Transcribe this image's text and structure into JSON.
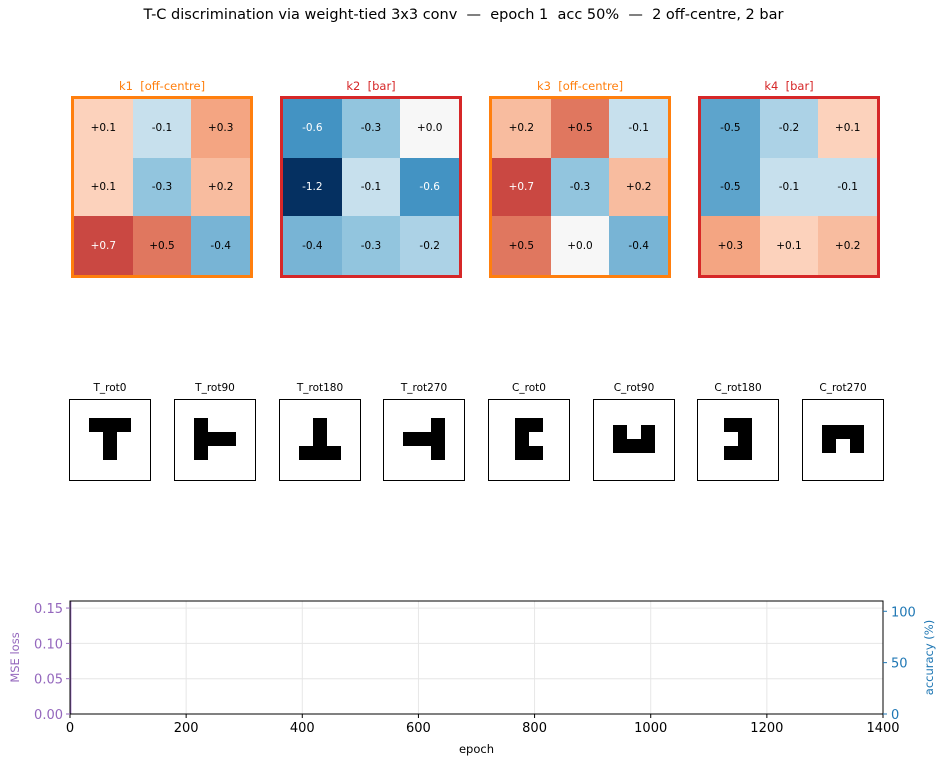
{
  "figure": {
    "title": "T-C discrimination via weight-tied 3x3 conv  —  epoch 1  acc 50%  —  2 off-centre, 2 bar"
  },
  "colors": {
    "off_centre": "#ff7f0e",
    "bar": "#d62728",
    "loss": "#9467bd",
    "accuracy": "#1f77b4",
    "colormap": "RdBu_r"
  },
  "kernels": [
    {
      "title": "k1  [off-centre]",
      "type": "off-centre",
      "values": [
        [
          0.1,
          -0.1,
          0.3
        ],
        [
          0.1,
          -0.3,
          0.2
        ],
        [
          0.7,
          0.5,
          -0.4
        ]
      ],
      "labels": [
        [
          "+0.1",
          "-0.1",
          "+0.3"
        ],
        [
          "+0.1",
          "-0.3",
          "+0.2"
        ],
        [
          "+0.7",
          "+0.5",
          "-0.4"
        ]
      ]
    },
    {
      "title": "k2  [bar]",
      "type": "bar",
      "values": [
        [
          -0.6,
          -0.3,
          0.0
        ],
        [
          -1.2,
          -0.1,
          -0.6
        ],
        [
          -0.4,
          -0.3,
          -0.2
        ]
      ],
      "labels": [
        [
          "-0.6",
          "-0.3",
          "+0.0"
        ],
        [
          "-1.2",
          "-0.1",
          "-0.6"
        ],
        [
          "-0.4",
          "-0.3",
          "-0.2"
        ]
      ]
    },
    {
      "title": "k3  [off-centre]",
      "type": "off-centre",
      "values": [
        [
          0.2,
          0.5,
          -0.1
        ],
        [
          0.7,
          -0.3,
          0.2
        ],
        [
          0.5,
          0.0,
          -0.4
        ]
      ],
      "labels": [
        [
          "+0.2",
          "+0.5",
          "-0.1"
        ],
        [
          "+0.7",
          "-0.3",
          "+0.2"
        ],
        [
          "+0.5",
          "+0.0",
          "-0.4"
        ]
      ]
    },
    {
      "title": "k4  [bar]",
      "type": "bar",
      "values": [
        [
          -0.5,
          -0.2,
          0.1
        ],
        [
          -0.5,
          -0.1,
          -0.1
        ],
        [
          0.3,
          0.1,
          0.2
        ]
      ],
      "labels": [
        [
          "-0.5",
          "-0.2",
          "+0.1"
        ],
        [
          "-0.5",
          "-0.1",
          "-0.1"
        ],
        [
          "+0.3",
          "+0.1",
          "+0.2"
        ]
      ]
    }
  ],
  "glyphs": [
    {
      "label": "T_rot0",
      "pixels": [
        [
          1,
          1,
          1
        ],
        [
          0,
          1,
          0
        ],
        [
          0,
          1,
          0
        ]
      ]
    },
    {
      "label": "T_rot90",
      "pixels": [
        [
          1,
          0,
          0
        ],
        [
          1,
          1,
          1
        ],
        [
          1,
          0,
          0
        ]
      ]
    },
    {
      "label": "T_rot180",
      "pixels": [
        [
          0,
          1,
          0
        ],
        [
          0,
          1,
          0
        ],
        [
          1,
          1,
          1
        ]
      ]
    },
    {
      "label": "T_rot270",
      "pixels": [
        [
          0,
          0,
          1
        ],
        [
          1,
          1,
          1
        ],
        [
          0,
          0,
          1
        ]
      ]
    },
    {
      "label": "C_rot0",
      "pixels": [
        [
          1,
          1
        ],
        [
          1,
          0
        ],
        [
          1,
          1
        ]
      ]
    },
    {
      "label": "C_rot90",
      "pixels": [
        [
          1,
          0,
          1
        ],
        [
          1,
          1,
          1
        ]
      ]
    },
    {
      "label": "C_rot180",
      "pixels": [
        [
          1,
          1
        ],
        [
          0,
          1
        ],
        [
          1,
          1
        ]
      ]
    },
    {
      "label": "C_rot270",
      "pixels": [
        [
          1,
          1,
          1
        ],
        [
          1,
          0,
          1
        ]
      ]
    }
  ],
  "chart_data": {
    "type": "line",
    "title": "",
    "xlabel": "epoch",
    "xlim": [
      0,
      1400
    ],
    "xticks": [
      0,
      200,
      400,
      600,
      800,
      1000,
      1200,
      1400
    ],
    "y_left": {
      "label": "MSE loss",
      "lim": [
        0,
        0.16
      ],
      "ticks": [
        "0.00",
        "0.05",
        "0.10",
        "0.15"
      ],
      "tick_values": [
        0,
        0.05,
        0.1,
        0.15
      ]
    },
    "y_right": {
      "label": "accuracy (%)",
      "lim": [
        0,
        110
      ],
      "ticks": [
        "0",
        "50",
        "100"
      ],
      "tick_values": [
        0,
        50,
        100
      ]
    },
    "grid": true,
    "series": [
      {
        "axis": "left",
        "x": [
          1,
          1
        ],
        "y": [
          0.0,
          0.16
        ]
      }
    ]
  }
}
